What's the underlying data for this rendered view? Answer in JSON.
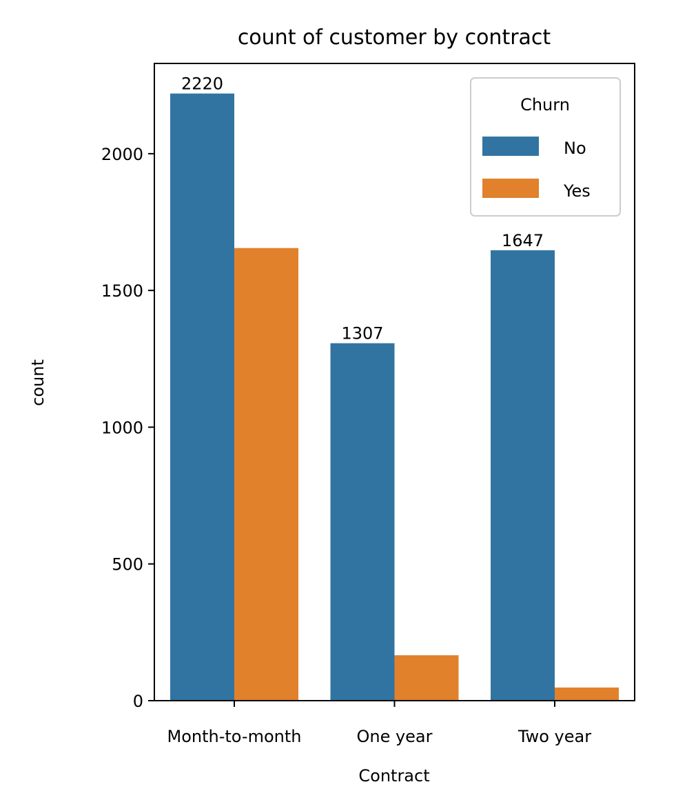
{
  "chart_data": {
    "type": "bar",
    "title": "count of customer by contract",
    "xlabel": "Contract",
    "ylabel": "count",
    "categories": [
      "Month-to-month",
      "One year",
      "Two year"
    ],
    "series": [
      {
        "name": "No",
        "values": [
          2220,
          1307,
          1647
        ],
        "color": "#3274a1"
      },
      {
        "name": "Yes",
        "values": [
          1655,
          166,
          48
        ],
        "color": "#e1812c"
      }
    ],
    "data_labels": [
      "2220",
      "1307",
      "1647"
    ],
    "ylim": [
      0,
      2330
    ],
    "yticks": [
      {
        "value": 0,
        "label": "0"
      },
      {
        "value": 500,
        "label": "500"
      },
      {
        "value": 1000,
        "label": "1000"
      },
      {
        "value": 1500,
        "label": "1500"
      },
      {
        "value": 2000,
        "label": "2000"
      }
    ],
    "legend": {
      "title": "Churn",
      "position": "top-right"
    },
    "grid": false
  }
}
